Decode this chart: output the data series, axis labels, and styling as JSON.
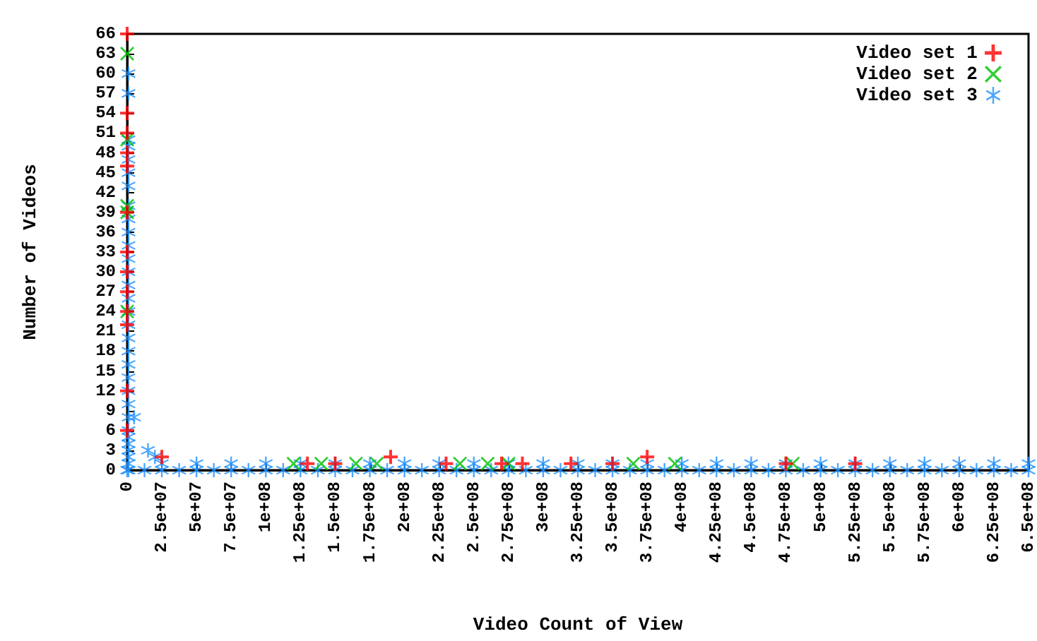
{
  "chart_data": {
    "type": "scatter",
    "xlabel": "Video Count of View",
    "ylabel": "Number of Videos",
    "legend": "top right",
    "grid": false,
    "xlim": [
      0,
      650000000
    ],
    "ylim": [
      0,
      66
    ],
    "xticks": [
      0,
      {
        "value": 25000000.0,
        "label": "2.5e+07"
      },
      {
        "value": 50000000.0,
        "label": "5e+07"
      },
      {
        "value": 75000000.0,
        "label": "7.5e+07"
      },
      {
        "value": 100000000.0,
        "label": "1e+08"
      },
      {
        "value": 125000000.0,
        "label": "1.25e+08"
      },
      {
        "value": 150000000.0,
        "label": "1.5e+08"
      },
      {
        "value": 175000000.0,
        "label": "1.75e+08"
      },
      {
        "value": 200000000.0,
        "label": "2e+08"
      },
      {
        "value": 225000000.0,
        "label": "2.25e+08"
      },
      {
        "value": 250000000.0,
        "label": "2.5e+08"
      },
      {
        "value": 275000000.0,
        "label": "2.75e+08"
      },
      {
        "value": 300000000.0,
        "label": "3e+08"
      },
      {
        "value": 325000000.0,
        "label": "3.25e+08"
      },
      {
        "value": 350000000.0,
        "label": "3.5e+08"
      },
      {
        "value": 375000000.0,
        "label": "3.75e+08"
      },
      {
        "value": 400000000.0,
        "label": "4e+08"
      },
      {
        "value": 425000000.0,
        "label": "4.25e+08"
      },
      {
        "value": 450000000.0,
        "label": "4.5e+08"
      },
      {
        "value": 475000000.0,
        "label": "4.75e+08"
      },
      {
        "value": 500000000.0,
        "label": "5e+08"
      },
      {
        "value": 525000000.0,
        "label": "5.25e+08"
      },
      {
        "value": 550000000.0,
        "label": "5.5e+08"
      },
      {
        "value": 575000000.0,
        "label": "5.75e+08"
      },
      {
        "value": 600000000.0,
        "label": "6e+08"
      },
      {
        "value": 625000000.0,
        "label": "6.25e+08"
      },
      {
        "value": 650000000.0,
        "label": "6.5e+08"
      }
    ],
    "yticks": [
      0,
      3,
      6,
      9,
      12,
      15,
      18,
      21,
      24,
      27,
      30,
      33,
      36,
      39,
      42,
      45,
      48,
      51,
      54,
      57,
      60,
      63,
      66
    ],
    "series": [
      {
        "name": "Video set 1",
        "color": "#ff0000",
        "marker": "cross",
        "x": [
          0,
          0,
          0,
          0,
          0,
          0,
          0,
          0,
          0,
          0,
          0,
          0,
          0,
          25000000.0,
          130000000.0,
          150000000.0,
          190000000.0,
          230000000.0,
          270000000.0,
          285000000.0,
          320000000.0,
          350000000.0,
          375000000.0,
          475000000.0,
          525000000.0
        ],
        "values": [
          66,
          54,
          51,
          48,
          46,
          39,
          33,
          30,
          27,
          24,
          22,
          12,
          6,
          2,
          1,
          1,
          2,
          1,
          1,
          1,
          1,
          1,
          2,
          1,
          1
        ]
      },
      {
        "name": "Video set 2",
        "color": "#00c000",
        "marker": "x",
        "x": [
          0,
          0,
          0,
          0,
          0,
          120000000.0,
          140000000.0,
          165000000.0,
          180000000.0,
          240000000.0,
          260000000.0,
          275000000.0,
          365000000.0,
          395000000.0,
          480000000.0
        ],
        "values": [
          63,
          50,
          40,
          39,
          24,
          1,
          1,
          1,
          1,
          1,
          1,
          1,
          1,
          1,
          1
        ]
      },
      {
        "name": "Video set 3",
        "color": "#1e90ff",
        "marker": "star",
        "x": [
          1000000.0,
          1000000.0,
          1000000.0,
          1000000.0,
          1000000.0,
          1000000.0,
          1000000.0,
          1000000.0,
          1000000.0,
          1000000.0,
          1000000.0,
          1000000.0,
          1000000.0,
          1000000.0,
          1000000.0,
          1000000.0,
          1000000.0,
          1000000.0,
          1000000.0,
          1000000.0,
          1000000.0,
          1000000.0,
          1000000.0,
          1000000.0,
          1000000.0,
          1000000.0,
          1000000.0,
          1000000.0,
          1000000.0,
          1000000.0,
          1000000.0,
          5000000.0,
          15000000.0,
          20000000.0,
          0,
          12500000.0,
          25000000.0,
          37500000.0,
          50000000.0,
          62500000.0,
          75000000.0,
          87500000.0,
          100000000.0,
          112500000.0,
          125000000.0,
          137500000.0,
          150000000.0,
          162500000.0,
          175000000.0,
          187500000.0,
          200000000.0,
          212500000.0,
          225000000.0,
          237500000.0,
          250000000.0,
          262500000.0,
          275000000.0,
          287500000.0,
          300000000.0,
          312500000.0,
          325000000.0,
          337500000.0,
          350000000.0,
          362500000.0,
          375000000.0,
          387500000.0,
          400000000.0,
          412500000.0,
          425000000.0,
          437500000.0,
          450000000.0,
          462500000.0,
          475000000.0,
          487500000.0,
          500000000.0,
          512500000.0,
          525000000.0,
          537500000.0,
          550000000.0,
          562500000.0,
          575000000.0,
          587500000.0,
          600000000.0,
          612500000.0,
          625000000.0,
          637500000.0,
          650000000.0,
          25000000.0,
          50000000.0,
          75000000.0,
          100000000.0,
          125000000.0,
          150000000.0,
          175000000.0,
          200000000.0,
          225000000.0,
          250000000.0,
          275000000.0,
          300000000.0,
          325000000.0,
          350000000.0,
          375000000.0,
          400000000.0,
          425000000.0,
          450000000.0,
          475000000.0,
          500000000.0,
          525000000.0,
          550000000.0,
          575000000.0,
          600000000.0,
          625000000.0,
          650000000.0
        ],
        "values": [
          60,
          57,
          50,
          49,
          47,
          45,
          43,
          40,
          38,
          36,
          34,
          32,
          30,
          28,
          26,
          24,
          22,
          20,
          18,
          16,
          14,
          12,
          10,
          8,
          6,
          5,
          4,
          3,
          2,
          1,
          0,
          8,
          3,
          2,
          0,
          0,
          0,
          0,
          0,
          0,
          0,
          0,
          0,
          0,
          0,
          0,
          0,
          0,
          0,
          0,
          0,
          0,
          0,
          0,
          0,
          0,
          0,
          0,
          0,
          0,
          0,
          0,
          0,
          0,
          0,
          0,
          0,
          0,
          0,
          0,
          0,
          0,
          0,
          0,
          0,
          0,
          0,
          0,
          0,
          0,
          0,
          0,
          0,
          0,
          0,
          0,
          0,
          1,
          1,
          1,
          1,
          1,
          1,
          1,
          1,
          1,
          1,
          1,
          1,
          1,
          1,
          1,
          1,
          1,
          1,
          1,
          1,
          1,
          1,
          1,
          1,
          1,
          1
        ]
      }
    ]
  }
}
